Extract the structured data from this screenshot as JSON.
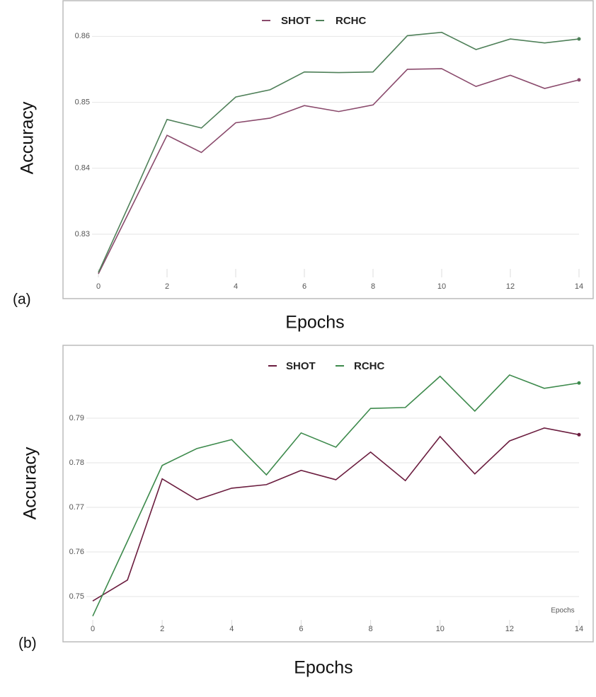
{
  "chart_data": [
    {
      "type": "line",
      "panel_label": "(a)",
      "xlabel": "Epochs",
      "ylabel": "Accuracy",
      "xlim": [
        0,
        14
      ],
      "xticks": [
        0,
        2,
        4,
        6,
        8,
        10,
        12,
        14
      ],
      "ylim": [
        0.824,
        0.861
      ],
      "yticks": [
        0.83,
        0.84,
        0.85,
        0.86
      ],
      "grid": true,
      "x": [
        0,
        1,
        2,
        3,
        4,
        5,
        6,
        7,
        8,
        9,
        10,
        11,
        12,
        13,
        14
      ],
      "series": [
        {
          "name": "SHOT",
          "color": "#8a4a6c",
          "values": [
            0.824,
            0.8345,
            0.845,
            0.8424,
            0.8469,
            0.8476,
            0.8495,
            0.8486,
            0.8496,
            0.855,
            0.8551,
            0.8524,
            0.8541,
            0.8521,
            0.8534
          ]
        },
        {
          "name": "RCHC",
          "color": "#4f8059",
          "values": [
            0.8242,
            0.8357,
            0.8474,
            0.8461,
            0.8508,
            0.8519,
            0.8546,
            0.8545,
            0.8546,
            0.8601,
            0.8606,
            0.858,
            0.8596,
            0.859,
            0.8596
          ]
        }
      ]
    },
    {
      "type": "line",
      "panel_label": "(b)",
      "xlabel": "Epochs",
      "ylabel": "Accuracy",
      "annotation": "Epochs",
      "xlim": [
        0,
        14
      ],
      "xticks": [
        0,
        2,
        4,
        6,
        8,
        10,
        12,
        14
      ],
      "ylim": [
        0.745,
        0.801
      ],
      "yticks": [
        0.75,
        0.76,
        0.77,
        0.78,
        0.79
      ],
      "grid": true,
      "x": [
        0,
        1,
        2,
        3,
        4,
        5,
        6,
        7,
        8,
        9,
        10,
        11,
        12,
        13,
        14
      ],
      "series": [
        {
          "name": "SHOT",
          "color": "#6b1d3f",
          "values": [
            0.749,
            0.7537,
            0.7764,
            0.7717,
            0.7743,
            0.7751,
            0.7783,
            0.7762,
            0.7824,
            0.776,
            0.7859,
            0.7775,
            0.7849,
            0.7878,
            0.7863
          ]
        },
        {
          "name": "RCHC",
          "color": "#3d8a4c",
          "values": [
            0.7456,
            0.7624,
            0.7794,
            0.7832,
            0.7852,
            0.7773,
            0.7867,
            0.7835,
            0.7922,
            0.7924,
            0.7994,
            0.7916,
            0.7997,
            0.7967,
            0.7979
          ]
        }
      ]
    }
  ]
}
